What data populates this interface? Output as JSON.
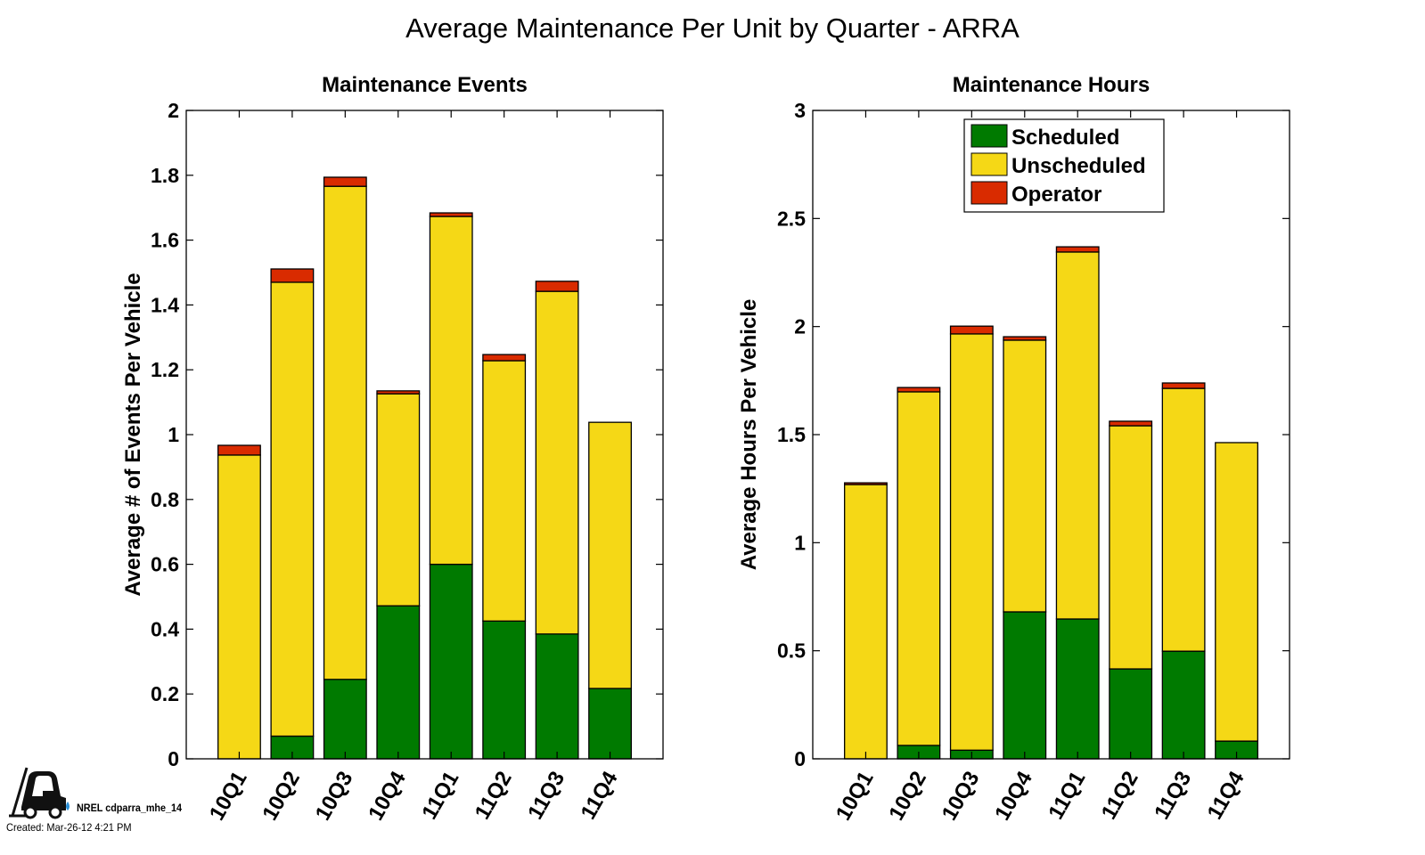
{
  "figure": {
    "title": "Average Maintenance Per Unit by Quarter - ARRA",
    "footer": {
      "owner": "NREL cdparra_mhe_14",
      "created": "Created: Mar-26-12  4:21 PM",
      "logo_icon": "forklift-icon"
    }
  },
  "colors": {
    "Scheduled": "#007a00",
    "Unscheduled": "#f5d816",
    "Operator": "#d92b00"
  },
  "chart_data": [
    {
      "type": "bar",
      "stacked": true,
      "title": "Maintenance Events",
      "xlabel": "",
      "ylabel": "Average # of Events Per Vehicle",
      "categories": [
        "10Q1",
        "10Q2",
        "10Q3",
        "10Q4",
        "11Q1",
        "11Q2",
        "11Q3",
        "11Q4"
      ],
      "ylim": [
        0,
        2
      ],
      "yticks": [
        0,
        0.2,
        0.4,
        0.6,
        0.8,
        1,
        1.2,
        1.4,
        1.6,
        1.8,
        2
      ],
      "ytick_labels": [
        "0",
        "0.2",
        "0.4",
        "0.6",
        "0.8",
        "1",
        "1.2",
        "1.4",
        "1.6",
        "1.8",
        "2"
      ],
      "grid": false,
      "legend": null,
      "series": [
        {
          "name": "Scheduled",
          "values": [
            0.0,
            0.07,
            0.245,
            0.472,
            0.6,
            0.425,
            0.385,
            0.217
          ]
        },
        {
          "name": "Unscheduled",
          "values": [
            0.937,
            1.4,
            1.521,
            0.654,
            1.073,
            0.803,
            1.057,
            0.821
          ]
        },
        {
          "name": "Operator",
          "values": [
            0.03,
            0.041,
            0.028,
            0.009,
            0.011,
            0.019,
            0.031,
            0.0
          ]
        }
      ]
    },
    {
      "type": "bar",
      "stacked": true,
      "title": "Maintenance Hours",
      "xlabel": "",
      "ylabel": "Average Hours Per Vehicle",
      "categories": [
        "10Q1",
        "10Q2",
        "10Q3",
        "10Q4",
        "11Q1",
        "11Q2",
        "11Q3",
        "11Q4"
      ],
      "ylim": [
        0,
        3
      ],
      "yticks": [
        0,
        0.5,
        1,
        1.5,
        2,
        2.5,
        3
      ],
      "ytick_labels": [
        "0",
        "0.5",
        "1",
        "1.5",
        "2",
        "2.5",
        "3"
      ],
      "grid": false,
      "legend": {
        "position": "top-center",
        "entries": [
          "Scheduled",
          "Unscheduled",
          "Operator"
        ]
      },
      "series": [
        {
          "name": "Scheduled",
          "values": [
            0.0,
            0.062,
            0.04,
            0.68,
            0.647,
            0.416,
            0.498,
            0.082
          ]
        },
        {
          "name": "Unscheduled",
          "values": [
            1.269,
            1.636,
            1.926,
            1.257,
            1.698,
            1.125,
            1.216,
            1.381
          ]
        },
        {
          "name": "Operator",
          "values": [
            0.008,
            0.02,
            0.036,
            0.016,
            0.024,
            0.021,
            0.025,
            0.0
          ]
        }
      ]
    }
  ]
}
